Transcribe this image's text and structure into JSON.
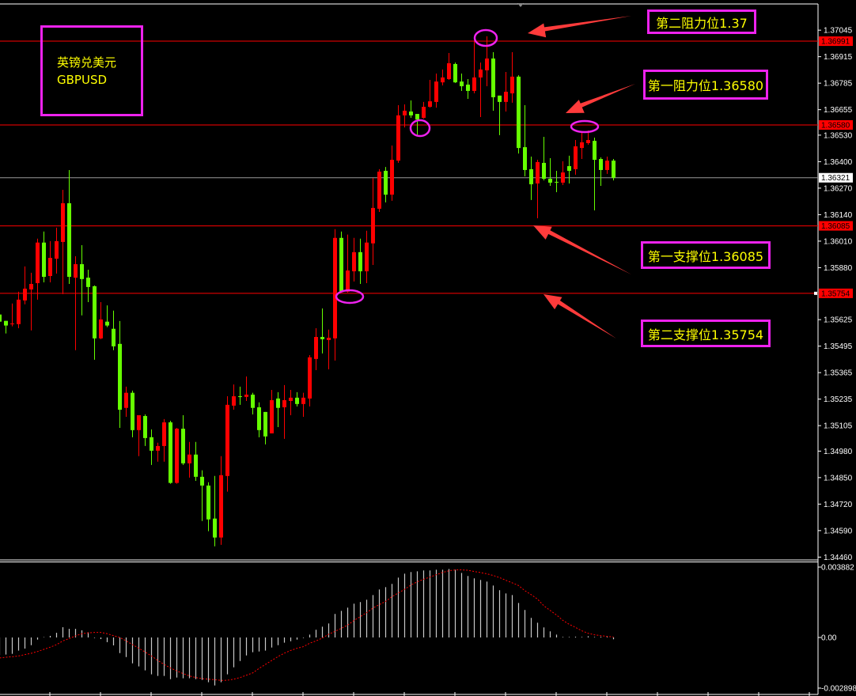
{
  "symbol": {
    "name_cn": "英镑兑美元",
    "code": "GBPUSD"
  },
  "colors": {
    "up": "#ff0000",
    "down": "#66ff00",
    "level_line": "#ff0000",
    "current_line": "#9a9a9a",
    "annotation_border": "#ee22ee",
    "annotation_text": "#ffff00",
    "arrow": "#ff3b3b",
    "macd_hist": "#c8c8c8",
    "macd_signal": "#ff0000"
  },
  "annotations": [
    {
      "text": "第二阻力位1.37",
      "price": 1.36991
    },
    {
      "text": "第一阻力位1.36580",
      "price": 1.3658
    },
    {
      "text": "第一支撑位1.36085",
      "price": 1.36085
    },
    {
      "text": "第二支撑位1.35754",
      "price": 1.35754
    }
  ],
  "price_axis": {
    "ticks": [
      "1.37045",
      "1.36915",
      "1.36785",
      "1.36655",
      "1.36530",
      "1.36400",
      "1.36270",
      "1.36140",
      "1.36010",
      "1.35880",
      "1.35625",
      "1.35495",
      "1.35365",
      "1.35235",
      "1.35105",
      "1.34980",
      "1.34850",
      "1.34720",
      "1.34590",
      "1.34460"
    ],
    "level_labels": [
      "1.36991",
      "1.36580",
      "1.36085",
      "1.35754"
    ],
    "current_price": "1.36321"
  },
  "macd_axis": {
    "max": "0.003882",
    "zero": "0.00",
    "min": "-0.002898"
  },
  "chart_data": [
    {
      "type": "candlestick",
      "title": "",
      "ylim": [
        1.3446,
        1.37045
      ],
      "ohlc_order": [
        "open",
        "high",
        "low",
        "close"
      ],
      "horizontal_levels": [
        1.36991,
        1.3658,
        1.36321,
        1.36085,
        1.35754
      ],
      "candles": [
        [
          1.3565,
          1.35658,
          1.35603,
          1.35615
        ],
        [
          1.35619,
          1.35619,
          1.35557,
          1.35596
        ],
        [
          1.35603,
          1.35704,
          1.35592,
          1.35606
        ],
        [
          1.35603,
          1.35762,
          1.35583,
          1.35723
        ],
        [
          1.35719,
          1.35886,
          1.357,
          1.35777
        ],
        [
          1.35773,
          1.35855,
          1.35572,
          1.358
        ],
        [
          1.35804,
          1.36022,
          1.35723,
          1.36003
        ],
        [
          1.36003,
          1.36057,
          1.35808,
          1.35835
        ],
        [
          1.35839,
          1.3601,
          1.35808,
          1.35928
        ],
        [
          1.35924,
          1.36076,
          1.35851,
          1.3601
        ],
        [
          1.36006,
          1.36262,
          1.3575,
          1.36196
        ],
        [
          1.36196,
          1.36359,
          1.358,
          1.35835
        ],
        [
          1.35831,
          1.35936,
          1.35475,
          1.35897
        ],
        [
          1.35897,
          1.3599,
          1.35646,
          1.35824
        ],
        [
          1.35831,
          1.3587,
          1.35711,
          1.35785
        ],
        [
          1.35789,
          1.35793,
          1.35428,
          1.35533
        ],
        [
          1.35533,
          1.35711,
          1.35529,
          1.35626
        ],
        [
          1.35615,
          1.35695,
          1.35588,
          1.35596
        ],
        [
          1.3558,
          1.35669,
          1.35475,
          1.35494
        ],
        [
          1.35506,
          1.35618,
          1.35094,
          1.35183
        ],
        [
          1.35192,
          1.35296,
          1.35148,
          1.35266
        ],
        [
          1.35266,
          1.35277,
          1.35048,
          1.35083
        ],
        [
          1.35083,
          1.35156,
          1.34955,
          1.35156
        ],
        [
          1.35152,
          1.3516,
          1.35005,
          1.35044
        ],
        [
          1.35048,
          1.35086,
          1.34912,
          1.34982
        ],
        [
          1.34982,
          1.35021,
          1.34928,
          1.35005
        ],
        [
          1.35005,
          1.35137,
          1.34928,
          1.35121
        ],
        [
          1.35121,
          1.35129,
          1.3482,
          1.34824
        ],
        [
          1.34824,
          1.35094,
          1.3482,
          1.3509
        ],
        [
          1.3509,
          1.35156,
          1.34912,
          1.3492
        ],
        [
          1.3492,
          1.35025,
          1.3485,
          1.34963
        ],
        [
          1.34963,
          1.35025,
          1.34834,
          1.34854
        ],
        [
          1.34854,
          1.34886,
          1.34637,
          1.34811
        ],
        [
          1.34811,
          1.34827,
          1.34587,
          1.34645
        ],
        [
          1.34649,
          1.34858,
          1.34513,
          1.34556
        ],
        [
          1.34556,
          1.34955,
          1.3452,
          1.34862
        ],
        [
          1.34858,
          1.35249,
          1.34781,
          1.35207
        ],
        [
          1.35203,
          1.35307,
          1.35183,
          1.35249
        ],
        [
          1.35249,
          1.35296,
          1.35207,
          1.35246
        ],
        [
          1.35246,
          1.35346,
          1.35226,
          1.35257
        ],
        [
          1.35257,
          1.35266,
          1.3516,
          1.35192
        ],
        [
          1.35195,
          1.35219,
          1.35048,
          1.35083
        ],
        [
          1.35172,
          1.35172,
          1.35013,
          1.35052
        ],
        [
          1.35067,
          1.3528,
          1.35067,
          1.3523
        ],
        [
          1.35238,
          1.35269,
          1.35098,
          1.35192
        ],
        [
          1.35195,
          1.35304,
          1.3504,
          1.3523
        ],
        [
          1.35226,
          1.3528,
          1.35156,
          1.35242
        ],
        [
          1.35242,
          1.35269,
          1.35199,
          1.35211
        ],
        [
          1.35211,
          1.35266,
          1.35148,
          1.35242
        ],
        [
          1.35238,
          1.35451,
          1.35199,
          1.3544
        ],
        [
          1.35432,
          1.35583,
          1.35377,
          1.3554
        ],
        [
          1.3554,
          1.3568,
          1.35459,
          1.35529
        ],
        [
          1.35525,
          1.35576,
          1.35381,
          1.35536
        ],
        [
          1.35533,
          1.36069,
          1.35424,
          1.36026
        ],
        [
          1.36026,
          1.36057,
          1.35762,
          1.35762
        ],
        [
          1.35762,
          1.36042,
          1.35758,
          1.35866
        ],
        [
          1.35862,
          1.36026,
          1.35812,
          1.35956
        ],
        [
          1.35956,
          1.36022,
          1.358,
          1.35862
        ],
        [
          1.35862,
          1.36061,
          1.35804,
          1.36003
        ],
        [
          1.35999,
          1.3632,
          1.35893,
          1.36173
        ],
        [
          1.36169,
          1.36363,
          1.36153,
          1.36351
        ],
        [
          1.36355,
          1.36374,
          1.362,
          1.36238
        ],
        [
          1.36238,
          1.36479,
          1.36208,
          1.36409
        ],
        [
          1.36405,
          1.36677,
          1.36394,
          1.36627
        ],
        [
          1.36627,
          1.36681,
          1.36568,
          1.3665
        ],
        [
          1.36646,
          1.367,
          1.36615,
          1.36627
        ],
        [
          1.36634,
          1.36634,
          1.3653,
          1.36607
        ],
        [
          1.36615,
          1.36693,
          1.36611,
          1.36669
        ],
        [
          1.36669,
          1.36801,
          1.36665,
          1.36696
        ],
        [
          1.36693,
          1.36832,
          1.36665,
          1.36793
        ],
        [
          1.36789,
          1.36852,
          1.36774,
          1.36813
        ],
        [
          1.36805,
          1.36933,
          1.36801,
          1.36883
        ],
        [
          1.36879,
          1.36886,
          1.36786,
          1.36789
        ],
        [
          1.36793,
          1.36832,
          1.36747,
          1.3677
        ],
        [
          1.36778,
          1.36805,
          1.36708,
          1.36747
        ],
        [
          1.36747,
          1.36991,
          1.36735,
          1.36813
        ],
        [
          1.36813,
          1.36886,
          1.36619,
          1.36852
        ],
        [
          1.36848,
          1.37015,
          1.3677,
          1.36906
        ],
        [
          1.36906,
          1.36937,
          1.3665,
          1.36716
        ],
        [
          1.36724,
          1.36724,
          1.3653,
          1.36693
        ],
        [
          1.36693,
          1.3684,
          1.36646,
          1.36743
        ],
        [
          1.36735,
          1.36937,
          1.36689,
          1.36817
        ],
        [
          1.36817,
          1.36824,
          1.3644,
          1.36467
        ],
        [
          1.36471,
          1.36677,
          1.36328,
          1.36359
        ],
        [
          1.36363,
          1.36425,
          1.36212,
          1.36289
        ],
        [
          1.36293,
          1.36409,
          1.36122,
          1.36398
        ],
        [
          1.36394,
          1.36522,
          1.36308,
          1.36316
        ],
        [
          1.36316,
          1.36417,
          1.36281,
          1.36297
        ],
        [
          1.36301,
          1.36355,
          1.3625,
          1.36298
        ],
        [
          1.36297,
          1.36402,
          1.36285,
          1.36347
        ],
        [
          1.36378,
          1.36429,
          1.36293,
          1.36355
        ],
        [
          1.36363,
          1.36506,
          1.36336,
          1.36475
        ],
        [
          1.36467,
          1.36541,
          1.36413,
          1.36495
        ],
        [
          1.36491,
          1.36553,
          1.36483,
          1.36506
        ],
        [
          1.36502,
          1.36518,
          1.36161,
          1.36409
        ],
        [
          1.36413,
          1.36421,
          1.36281,
          1.36359
        ],
        [
          1.36359,
          1.36425,
          1.3634,
          1.36405
        ],
        [
          1.36405,
          1.36413,
          1.36308,
          1.36321
        ]
      ]
    },
    {
      "type": "bar+line",
      "title": "",
      "ylim": [
        -0.002898,
        0.003882
      ],
      "histogram": [
        -0.00098,
        -0.00095,
        -0.00091,
        -0.00073,
        -0.00062,
        -0.00043,
        -0.00012,
        2e-05,
        9e-05,
        0.00026,
        0.00057,
        0.00048,
        0.00048,
        0.0004,
        0.00029,
        -3e-05,
        -9e-05,
        -0.00026,
        -0.00044,
        -0.00087,
        -0.00109,
        -0.00144,
        -0.00161,
        -0.00183,
        -0.00205,
        -0.00214,
        -0.00214,
        -0.00232,
        -0.00223,
        -0.00227,
        -0.00227,
        -0.00232,
        -0.00236,
        -0.00249,
        -0.00267,
        -0.00249,
        -0.00205,
        -0.00166,
        -0.00131,
        -0.001,
        -0.00082,
        -0.00078,
        -0.00073,
        -0.00056,
        -0.00043,
        -0.00029,
        -0.00021,
        -0.00012,
        -3e-05,
        0.00016,
        0.00043,
        0.0006,
        0.00078,
        0.00131,
        0.00148,
        0.00166,
        0.00188,
        0.00197,
        0.0021,
        0.00236,
        0.00267,
        0.0028,
        0.00298,
        0.00333,
        0.00355,
        0.00364,
        0.00368,
        0.00373,
        0.00373,
        0.00377,
        0.00377,
        0.00381,
        0.00377,
        0.00359,
        0.00342,
        0.00329,
        0.0032,
        0.00311,
        0.00289,
        0.00263,
        0.00245,
        0.00236,
        0.00192,
        0.00153,
        0.00109,
        0.00082,
        0.00056,
        0.00034,
        0.00016,
        3e-05,
        3e-05,
        0.0,
        3e-05,
        7e-05,
        3e-05,
        0.0,
        4e-05,
        -0.0001
      ],
      "signal": [
        -0.00114,
        -0.0011,
        -0.00107,
        -0.00103,
        -0.00095,
        -0.00088,
        -0.00078,
        -0.00066,
        -0.00054,
        -0.0004,
        -0.00019,
        -6e-05,
        9e-05,
        0.00021,
        0.00026,
        0.00028,
        0.00028,
        0.00021,
        0.0001,
        0.0,
        -0.00019,
        -0.0004,
        -0.0006,
        -0.00081,
        -0.00103,
        -0.00128,
        -0.0015,
        -0.0017,
        -0.00186,
        -0.00201,
        -0.00214,
        -0.00223,
        -0.00229,
        -0.00232,
        -0.00235,
        -0.00239,
        -0.00238,
        -0.00232,
        -0.00223,
        -0.0021,
        -0.00197,
        -0.00172,
        -0.0015,
        -0.00128,
        -0.00106,
        -0.00087,
        -0.00072,
        -0.0006,
        -0.00051,
        -0.00032,
        -0.00019,
        -3e-05,
        0.00018,
        0.00034,
        0.00051,
        0.00069,
        0.00095,
        0.00116,
        0.00138,
        0.00164,
        0.00183,
        0.00201,
        0.00227,
        0.00248,
        0.00268,
        0.00292,
        0.0031,
        0.00324,
        0.00336,
        0.00349,
        0.00362,
        0.00371,
        0.00376,
        0.00376,
        0.00374,
        0.00367,
        0.00361,
        0.00354,
        0.00345,
        0.00333,
        0.00318,
        0.00304,
        0.00289,
        0.0026,
        0.00238,
        0.00213,
        0.00176,
        0.0015,
        0.00125,
        0.00095,
        0.00073,
        0.00056,
        0.00037,
        0.00023,
        0.00015,
        0.0001,
        6e-05,
        3e-05
      ]
    }
  ]
}
